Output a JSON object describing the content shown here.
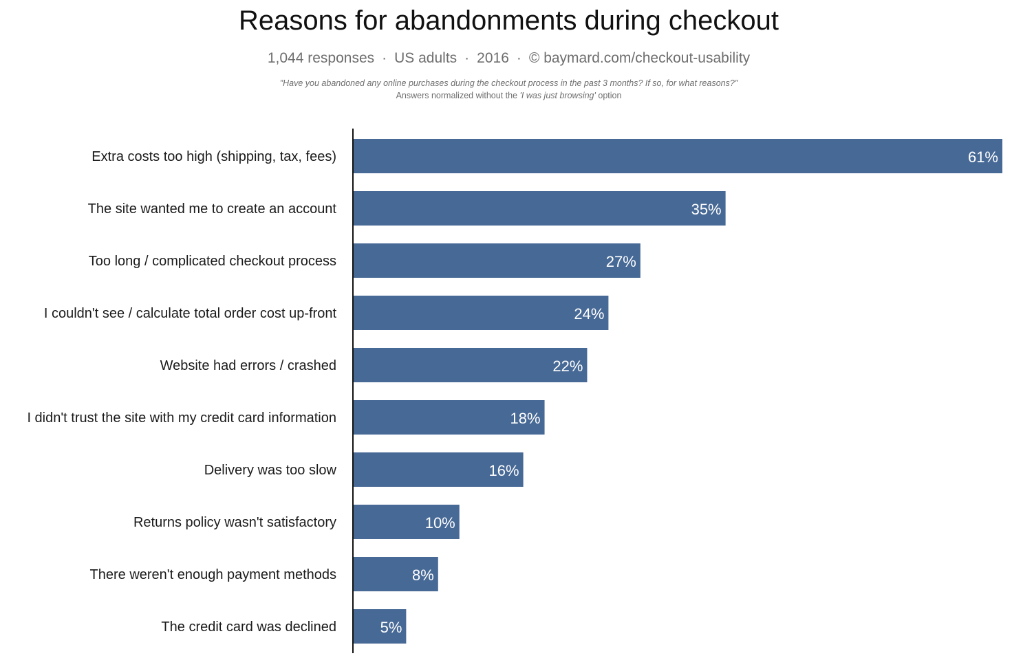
{
  "header": {
    "title": "Reasons for abandonments during checkout",
    "subtitle_parts": [
      "1,044 responses",
      "US adults",
      "2016",
      "© baymard.com/checkout-usability"
    ],
    "subtitle_separator": "·",
    "question": "\"Have you abandoned any online purchases during the checkout process in the past 3 months? If so, for what reasons?\"",
    "note_prefix": "Answers normalized without the ",
    "note_option": "'I was just browsing'",
    "note_suffix": " option"
  },
  "colors": {
    "bar": "#476996",
    "axis": "#111111",
    "value_text": "#ffffff"
  },
  "chart_data": {
    "type": "bar",
    "orientation": "horizontal",
    "title": "Reasons for abandonments during checkout",
    "xlabel": "",
    "ylabel": "",
    "xlim": [
      0,
      61
    ],
    "grid": false,
    "legend": "none",
    "value_suffix": "%",
    "categories": [
      "Extra costs too high (shipping, tax, fees)",
      "The site wanted me to create an account",
      "Too long / complicated checkout process",
      "I couldn't see / calculate total order cost up-front",
      "Website had errors / crashed",
      "I didn't trust the site with my credit card information",
      "Delivery was too slow",
      "Returns policy wasn't satisfactory",
      "There weren't enough payment methods",
      "The credit card was declined"
    ],
    "values": [
      61,
      35,
      27,
      24,
      22,
      18,
      16,
      10,
      8,
      5
    ],
    "value_labels": [
      "61%",
      "35%",
      "27%",
      "24%",
      "22%",
      "18%",
      "16%",
      "10%",
      "8%",
      "5%"
    ]
  }
}
